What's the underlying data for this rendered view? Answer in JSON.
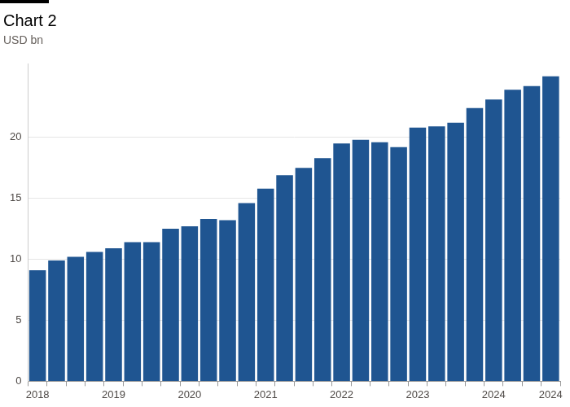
{
  "chart_data": {
    "type": "bar",
    "title": "Chart 2",
    "subtitle": "USD bn",
    "categories": [
      "2018",
      null,
      null,
      null,
      "2019",
      null,
      null,
      null,
      "2020",
      null,
      null,
      null,
      "2021",
      null,
      null,
      null,
      "2022",
      null,
      null,
      null,
      "2023",
      null,
      null,
      null,
      "2024",
      null,
      null,
      "2024"
    ],
    "values": [
      9.1,
      9.9,
      10.2,
      10.6,
      10.9,
      11.4,
      11.4,
      12.5,
      12.7,
      13.3,
      13.2,
      14.6,
      15.8,
      16.9,
      17.5,
      18.3,
      19.5,
      19.8,
      19.6,
      19.2,
      20.8,
      20.9,
      21.2,
      22.4,
      23.1,
      23.9,
      24.2,
      25.0
    ],
    "color": "#1f5591",
    "ylim": [
      0,
      26
    ],
    "yticks": [
      0,
      5,
      10,
      15,
      20
    ],
    "grid": true
  }
}
